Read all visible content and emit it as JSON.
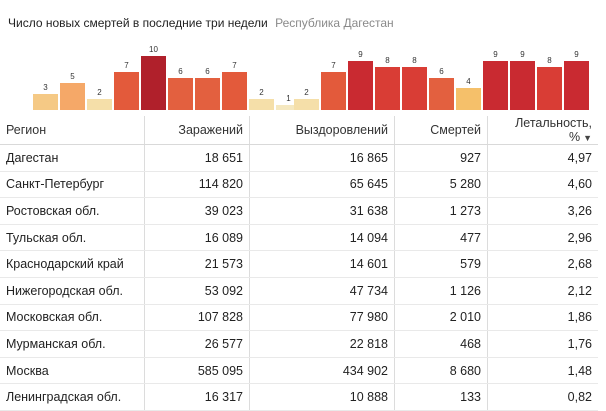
{
  "header": {
    "title": "Число новых смертей в последние три недели",
    "region": "Республика Дагестан"
  },
  "chart_data": {
    "type": "bar",
    "values": [
      3,
      5,
      2,
      7,
      10,
      6,
      6,
      7,
      2,
      1,
      2,
      7,
      9,
      8,
      8,
      6,
      4,
      9,
      9,
      8,
      9
    ],
    "colors": [
      "#f5c985",
      "#f5a868",
      "#f5dfa9",
      "#e35a3b",
      "#b0202b",
      "#e3603f",
      "#e3603f",
      "#e35a3b",
      "#f5dfa9",
      "#f5e8c0",
      "#f5dfa9",
      "#e35a3b",
      "#c92a31",
      "#d93d35",
      "#d93d35",
      "#e3603f",
      "#f5c06a",
      "#c92a31",
      "#c92a31",
      "#d93d35",
      "#c92a31"
    ]
  },
  "table": {
    "columns": [
      "Регион",
      "Заражений",
      "Выздоровлений",
      "Смертей",
      "Летальность, %"
    ],
    "sort_icon": "sort-desc-icon",
    "rows": [
      [
        "Дагестан",
        "18 651",
        "16 865",
        "927",
        "4,97"
      ],
      [
        "Санкт-Петербург",
        "114 820",
        "65 645",
        "5 280",
        "4,60"
      ],
      [
        "Ростовская обл.",
        "39 023",
        "31 638",
        "1 273",
        "3,26"
      ],
      [
        "Тульская обл.",
        "16 089",
        "14 094",
        "477",
        "2,96"
      ],
      [
        "Краснодарский край",
        "21 573",
        "14 601",
        "579",
        "2,68"
      ],
      [
        "Нижегородская обл.",
        "53 092",
        "47 734",
        "1 126",
        "2,12"
      ],
      [
        "Московская обл.",
        "107 828",
        "77 980",
        "2 010",
        "1,86"
      ],
      [
        "Мурманская обл.",
        "26 577",
        "22 818",
        "468",
        "1,76"
      ],
      [
        "Москва",
        "585 095",
        "434 902",
        "8 680",
        "1,48"
      ],
      [
        "Ленинградская обл.",
        "16 317",
        "10 888",
        "133",
        "0,82"
      ]
    ]
  }
}
